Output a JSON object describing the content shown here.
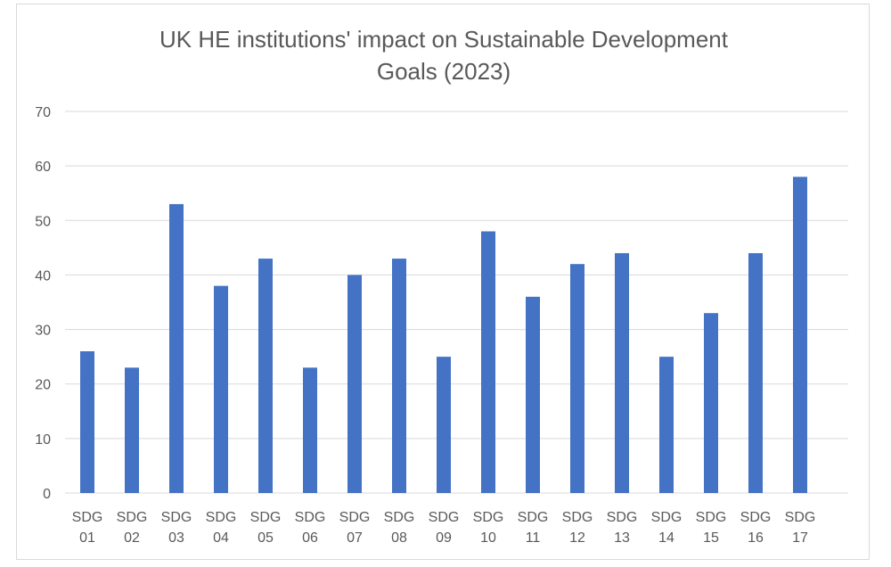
{
  "chart_data": {
    "type": "bar",
    "title_lines": [
      "UK HE institutions'  impact on Sustainable Development",
      "Goals (2023)"
    ],
    "categories": [
      [
        "SDG",
        "01"
      ],
      [
        "SDG",
        "02"
      ],
      [
        "SDG",
        "03"
      ],
      [
        "SDG",
        "04"
      ],
      [
        "SDG",
        "05"
      ],
      [
        "SDG",
        "06"
      ],
      [
        "SDG",
        "07"
      ],
      [
        "SDG",
        "08"
      ],
      [
        "SDG",
        "09"
      ],
      [
        "SDG",
        "10"
      ],
      [
        "SDG",
        "11"
      ],
      [
        "SDG",
        "12"
      ],
      [
        "SDG",
        "13"
      ],
      [
        "SDG",
        "14"
      ],
      [
        "SDG",
        "15"
      ],
      [
        "SDG",
        "16"
      ],
      [
        "SDG",
        "17"
      ]
    ],
    "values": [
      26,
      23,
      53,
      38,
      43,
      23,
      40,
      43,
      25,
      48,
      36,
      42,
      44,
      25,
      33,
      44,
      58
    ],
    "ylim": [
      0,
      70
    ],
    "yticks": [
      "0",
      "10",
      "20",
      "30",
      "40",
      "50",
      "60",
      "70"
    ],
    "grid": true,
    "legend": "none",
    "colors": {
      "bar": "#4472c4",
      "grid": "#d9d9d9",
      "text": "#595959"
    }
  }
}
